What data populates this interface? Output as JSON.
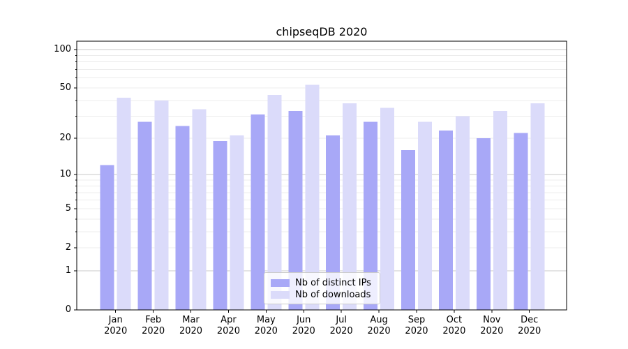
{
  "title": "chipseqDB 2020",
  "chart_data": {
    "type": "bar",
    "title": "chipseqDB 2020",
    "categories": [
      "Jan",
      "Feb",
      "Mar",
      "Apr",
      "May",
      "Jun",
      "Jul",
      "Aug",
      "Sep",
      "Oct",
      "Nov",
      "Dec"
    ],
    "category_year": "2020",
    "series": [
      {
        "name": "Nb of distinct IPs",
        "color": "#a8a8f7",
        "values": [
          12,
          27,
          25,
          19,
          31,
          33,
          21,
          27,
          16,
          23,
          20,
          22
        ]
      },
      {
        "name": "Nb of downloads",
        "color": "#dbdbfa",
        "values": [
          42,
          40,
          34,
          21,
          44,
          53,
          38,
          35,
          27,
          30,
          33,
          38
        ]
      }
    ],
    "yscale": "log1p",
    "ylim": [
      0,
      116
    ],
    "yticks": [
      0,
      1,
      2,
      5,
      10,
      20,
      50,
      100
    ],
    "ytick_labels": [
      "0",
      "1",
      "2",
      "5",
      "10",
      "20",
      "50",
      "100"
    ],
    "grid": true,
    "grid_major_color": "#c9c9c9",
    "grid_minor_color": "#ececec",
    "spine_color": "#000000",
    "legend_position": "lower center",
    "background_color": "#ffffff"
  }
}
